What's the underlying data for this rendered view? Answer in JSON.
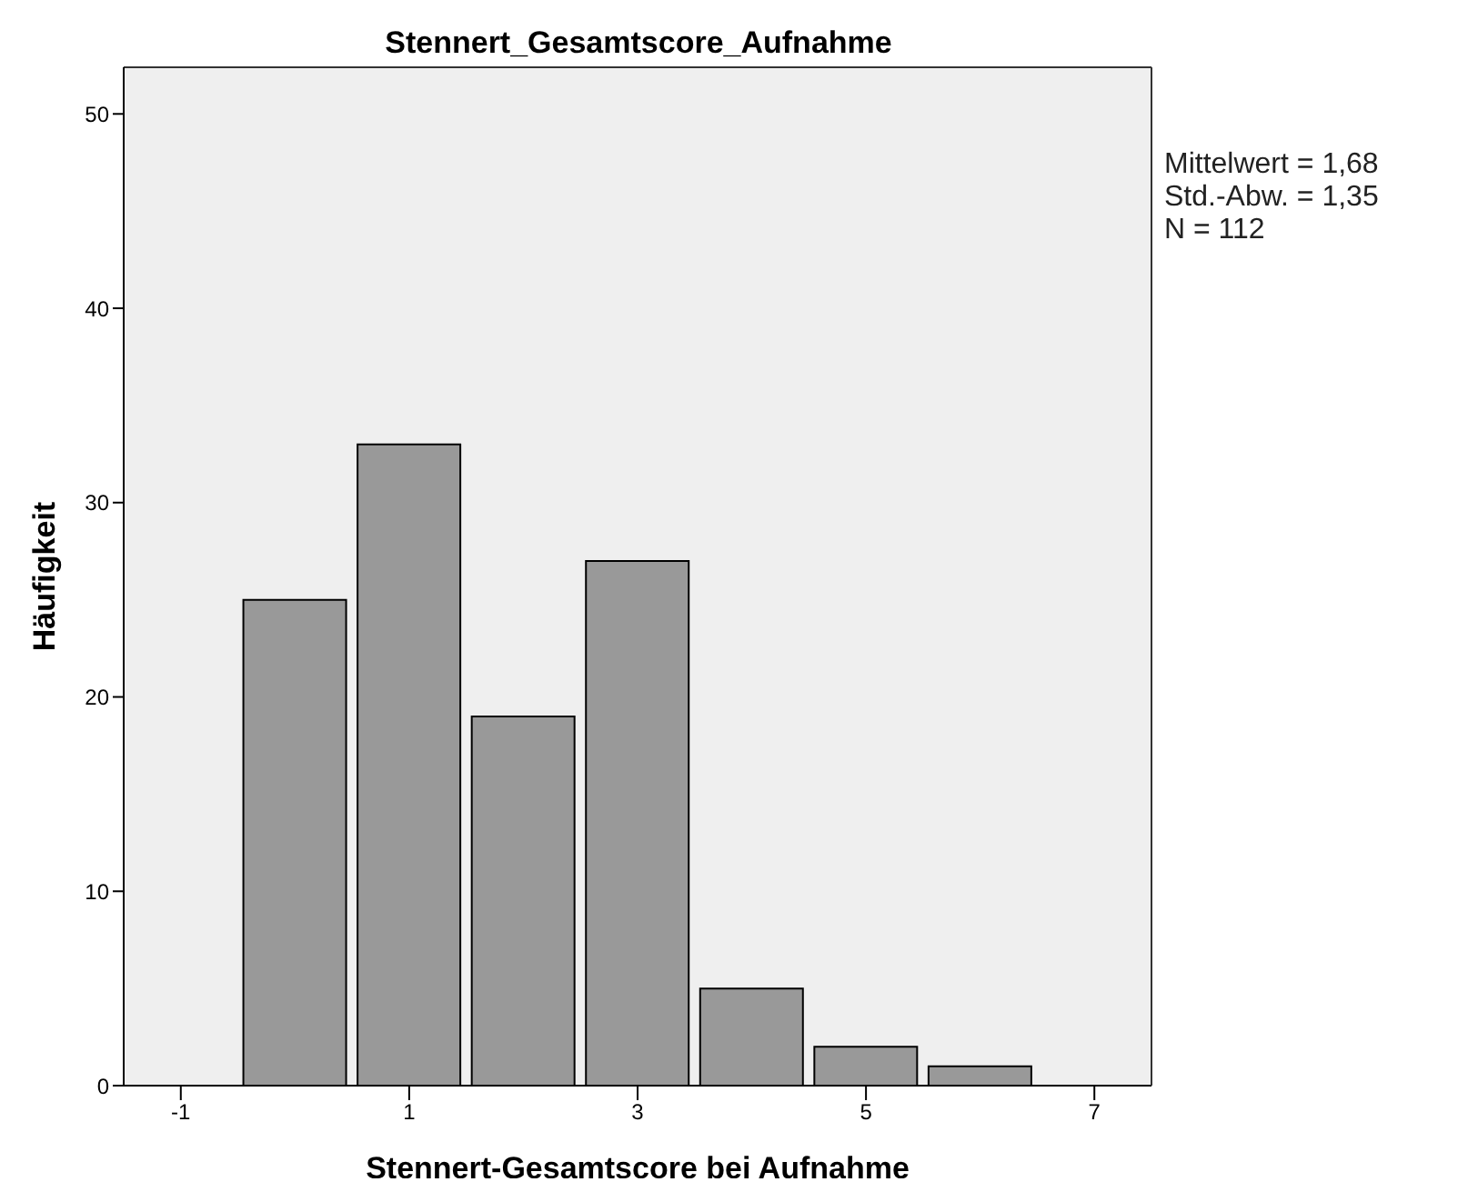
{
  "chart_data": {
    "type": "histogram",
    "title": "Stennert_Gesamtscore_Aufnahme",
    "xlabel": "Stennert-Gesamtscore bei Aufnahme",
    "ylabel": "Häufigkeit",
    "bins": [
      -0.5,
      0.5,
      1.5,
      2.5,
      3.5,
      4.5,
      5.5,
      6.5
    ],
    "values": [
      25,
      33,
      19,
      27,
      5,
      2,
      1
    ],
    "color": "#999999",
    "xlim": [
      -1.5,
      7.5
    ],
    "xticks": [
      -1,
      1,
      3,
      5,
      7
    ],
    "ylim": [
      0,
      52.4
    ],
    "yticks": [
      0,
      10,
      20,
      30,
      40,
      50
    ],
    "annotations": [
      "Mittelwert = 1,68",
      "Std.-Abw. = 1,35",
      "N = 112"
    ],
    "grid": false,
    "legend": false
  }
}
